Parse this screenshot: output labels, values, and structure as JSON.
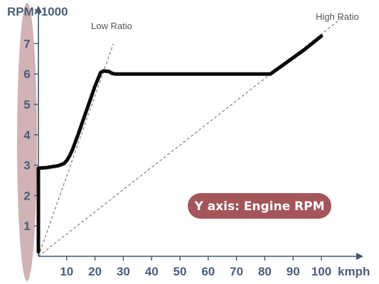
{
  "colors": {
    "axis": "#3e5670",
    "curve": "#0a0a0a",
    "reference_line": "#8a8a8a",
    "highlight_band": "#c9a4a8",
    "badge_fill": "#a4555a",
    "badge_text": "#ffffff",
    "tick_text": "#4a5d78",
    "label_text": "#555555"
  },
  "badge": {
    "text": "Y axis: Engine RPM"
  },
  "chart_data": {
    "type": "line",
    "title": "",
    "xlabel": "kmph",
    "ylabel": "RPM×1000",
    "xlim": [
      0,
      110
    ],
    "ylim": [
      0,
      8
    ],
    "x_ticks": [
      10,
      20,
      30,
      40,
      50,
      60,
      70,
      80,
      90,
      100
    ],
    "x_tick_labels": [
      "10",
      "20",
      "30",
      "40",
      "50",
      "60",
      "70",
      "80",
      "90",
      "100"
    ],
    "y_ticks": [
      1,
      2,
      3,
      4,
      5,
      6,
      7
    ],
    "y_tick_labels": [
      "1",
      "2",
      "3",
      "4",
      "5",
      "6",
      "7"
    ],
    "grid": false,
    "reference_lines": [
      {
        "label": "Low Ratio",
        "from": [
          0,
          0
        ],
        "to": [
          26.5,
          7.0
        ]
      },
      {
        "label": "High Ratio",
        "from": [
          0,
          0
        ],
        "to": [
          108,
          7.9
        ]
      }
    ],
    "series": [
      {
        "name": "",
        "x": [
          0,
          0,
          3,
          7,
          9,
          10,
          11,
          12,
          14,
          17,
          20,
          22,
          23,
          25,
          26,
          27,
          35,
          50,
          65,
          82,
          88,
          94,
          100
        ],
        "y": [
          0.15,
          2.9,
          2.92,
          2.98,
          3.05,
          3.15,
          3.3,
          3.5,
          4.0,
          4.8,
          5.6,
          6.05,
          6.1,
          6.08,
          6.02,
          6.0,
          6.0,
          6.0,
          6.0,
          6.0,
          6.4,
          6.8,
          7.25
        ]
      }
    ]
  }
}
